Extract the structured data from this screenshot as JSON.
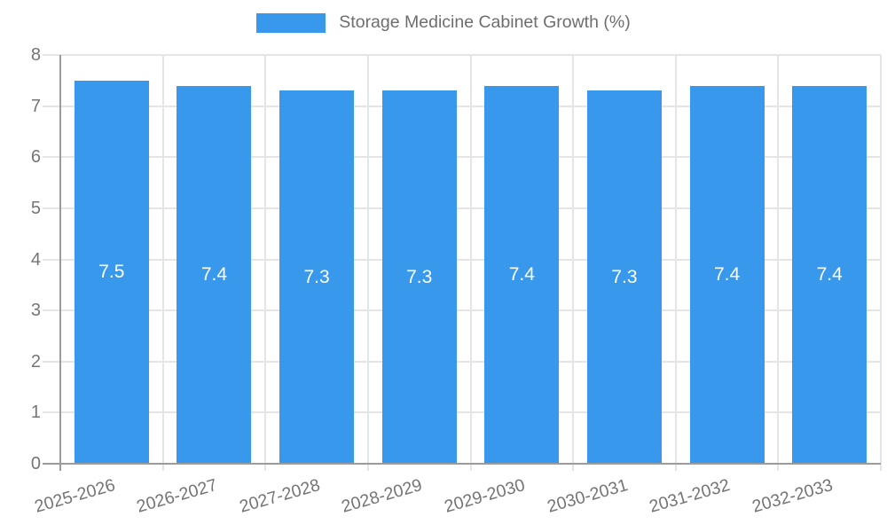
{
  "legend": {
    "label": "Storage Medicine Cabinet Growth (%)"
  },
  "colors": {
    "bar": "#3899EC",
    "grid": "#e5e5e5",
    "axis": "#9b9b9b",
    "tick_text": "#757575",
    "legend_text": "#6e6e6e",
    "value_label_text": "#ffffff",
    "background": "#ffffff"
  },
  "chart_data": {
    "type": "bar",
    "title": "Storage Medicine Cabinet Growth (%)",
    "categories": [
      "2025-2026",
      "2026-2027",
      "2027-2028",
      "2028-2029",
      "2029-2030",
      "2030-2031",
      "2031-2032",
      "2032-2033"
    ],
    "values": [
      7.5,
      7.4,
      7.3,
      7.3,
      7.4,
      7.3,
      7.4,
      7.4
    ],
    "value_labels": [
      "7.5",
      "7.4",
      "7.3",
      "7.3",
      "7.4",
      "7.3",
      "7.4",
      "7.4"
    ],
    "xlabel": "",
    "ylabel": "",
    "ylim": [
      0,
      8
    ],
    "yticks": [
      0,
      1,
      2,
      3,
      4,
      5,
      6,
      7,
      8
    ],
    "grid": true,
    "legend_position": "top",
    "value_labels_position": "center-of-bar"
  }
}
